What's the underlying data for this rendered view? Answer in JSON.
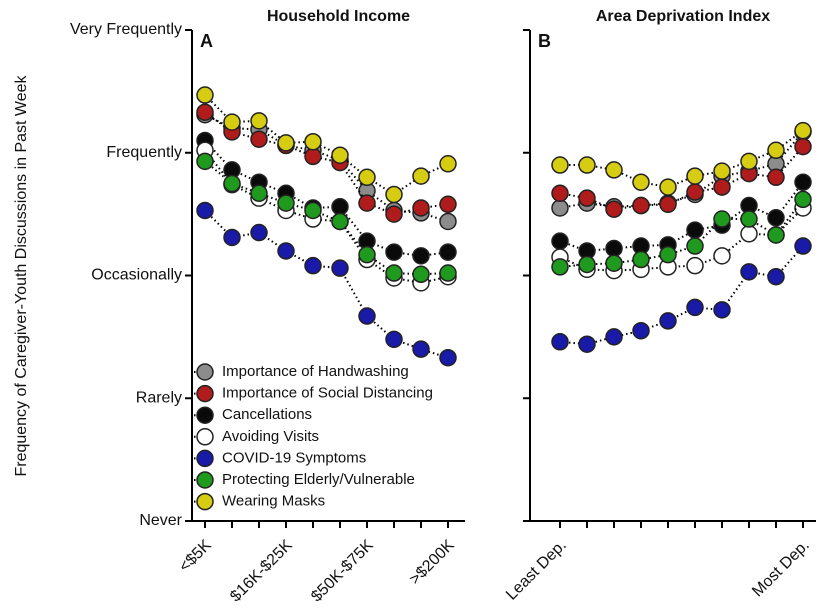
{
  "chart_data": [
    {
      "type": "line",
      "title": "Household Income",
      "panel": "A",
      "ylabel": "Frequency of Caregiver-Youth Discussions in Past Week",
      "categories": [
        "<$5K",
        null,
        null,
        "$16K-$25K",
        null,
        null,
        "$50K-$75K",
        null,
        null,
        ">$200K"
      ],
      "ylim": [
        1,
        5
      ],
      "yticks": [
        {
          "value": 1,
          "label": "Never"
        },
        {
          "value": 2,
          "label": "Rarely"
        },
        {
          "value": 3,
          "label": "Occasionally"
        },
        {
          "value": 4,
          "label": "Frequently"
        },
        {
          "value": 5,
          "label": "Very Frequently"
        }
      ],
      "legend": "lower left",
      "series": [
        {
          "name": "Importance of Handwashing",
          "color": "#8c8c8c",
          "values": [
            4.31,
            4.2,
            4.19,
            4.06,
            4.02,
            3.94,
            3.69,
            3.53,
            3.51,
            3.44
          ]
        },
        {
          "name": "Importance of Social Distancing",
          "color": "#b01c1c",
          "values": [
            4.33,
            4.17,
            4.11,
            4.06,
            3.97,
            3.92,
            3.59,
            3.5,
            3.55,
            3.58
          ]
        },
        {
          "name": "Cancellations",
          "color": "#0a0a0a",
          "values": [
            4.1,
            3.86,
            3.76,
            3.67,
            3.55,
            3.56,
            3.28,
            3.19,
            3.16,
            3.19
          ]
        },
        {
          "name": "Avoiding Visits",
          "color": "#ffffff",
          "values": [
            4.02,
            3.74,
            3.63,
            3.53,
            3.46,
            3.44,
            3.13,
            2.98,
            2.94,
            2.99
          ]
        },
        {
          "name": "COVID-19 Symptoms",
          "color": "#1a1aa8",
          "values": [
            3.53,
            3.31,
            3.35,
            3.2,
            3.08,
            3.06,
            2.67,
            2.48,
            2.4,
            2.33
          ]
        },
        {
          "name": "Protecting Elderly/Vulnerable",
          "color": "#1f9a1f",
          "values": [
            3.93,
            3.75,
            3.67,
            3.59,
            3.53,
            3.44,
            3.17,
            3.02,
            3.01,
            3.02
          ]
        },
        {
          "name": "Wearing Masks",
          "color": "#d6cc12",
          "values": [
            4.47,
            4.25,
            4.26,
            4.08,
            4.09,
            3.98,
            3.8,
            3.66,
            3.81,
            3.91
          ]
        }
      ]
    },
    {
      "type": "line",
      "title": "Area Deprivation Index",
      "panel": "B",
      "categories": [
        "Least Dep.",
        null,
        null,
        null,
        null,
        null,
        null,
        null,
        null,
        "Most Dep."
      ],
      "ylim": [
        1,
        5
      ],
      "yticks": [
        1,
        2,
        3,
        4,
        5
      ],
      "series": [
        {
          "color": "#8c8c8c",
          "values": [
            3.55,
            3.59,
            3.56,
            3.57,
            3.59,
            3.66,
            3.81,
            3.85,
            3.91,
            4.17
          ]
        },
        {
          "color": "#b01c1c",
          "values": [
            3.67,
            3.63,
            3.54,
            3.57,
            3.58,
            3.68,
            3.72,
            3.83,
            3.8,
            4.05
          ]
        },
        {
          "color": "#0a0a0a",
          "values": [
            3.28,
            3.2,
            3.22,
            3.24,
            3.25,
            3.37,
            3.41,
            3.57,
            3.47,
            3.76
          ]
        },
        {
          "color": "#ffffff",
          "values": [
            3.15,
            3.05,
            3.04,
            3.05,
            3.07,
            3.08,
            3.16,
            3.34,
            3.33,
            3.55
          ]
        },
        {
          "color": "#1a1aa8",
          "values": [
            2.46,
            2.44,
            2.5,
            2.55,
            2.63,
            2.74,
            2.72,
            3.03,
            2.99,
            3.24
          ]
        },
        {
          "color": "#1f9a1f",
          "values": [
            3.07,
            3.09,
            3.1,
            3.13,
            3.17,
            3.24,
            3.46,
            3.46,
            3.33,
            3.62
          ]
        },
        {
          "color": "#d6cc12",
          "values": [
            3.9,
            3.9,
            3.86,
            3.76,
            3.72,
            3.81,
            3.85,
            3.93,
            4.02,
            4.18
          ]
        }
      ]
    }
  ]
}
